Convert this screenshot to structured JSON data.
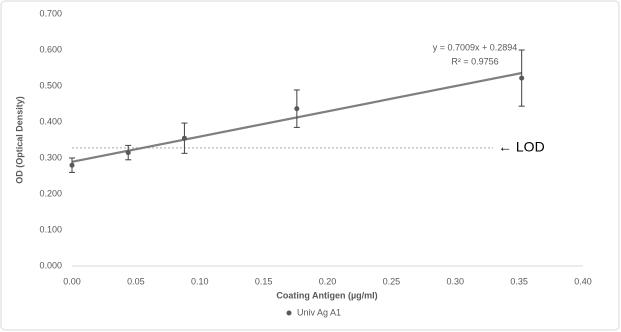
{
  "chart_data": {
    "type": "scatter",
    "x_label": "Coating Antigen (µg/ml)",
    "y_label": "OD (Optical Density)",
    "x": [
      0,
      0.044,
      0.088,
      0.176,
      0.352
    ],
    "series": [
      {
        "name": "Univ Ag A1",
        "color": "#595959",
        "values": [
          0.28,
          0.315,
          0.355,
          0.437,
          0.522
        ],
        "errors": [
          0.02,
          0.02,
          0.042,
          0.052,
          0.078
        ]
      }
    ],
    "trendline": {
      "slope": 0.7009,
      "intercept": 0.2894,
      "color": "#7f7f7f",
      "label": "y = 0.7009x + 0.2894",
      "r2_label": "R² = 0.9756"
    },
    "lod": {
      "value": 0.328,
      "label": "← LOD",
      "color": "#a6a6a6"
    },
    "xlim": [
      0,
      0.4
    ],
    "xticks": [
      {
        "value": 0,
        "label": "0.00"
      },
      {
        "value": 0.05,
        "label": "0.05"
      },
      {
        "value": 0.1,
        "label": "0.10"
      },
      {
        "value": 0.15,
        "label": "0.15"
      },
      {
        "value": 0.2,
        "label": "0.20"
      },
      {
        "value": 0.25,
        "label": "0.25"
      },
      {
        "value": 0.3,
        "label": "0.30"
      },
      {
        "value": 0.35,
        "label": "0.35"
      },
      {
        "value": 0.4,
        "label": "0.40"
      }
    ],
    "ylim": [
      0,
      0.7
    ],
    "yticks": [
      {
        "value": 0,
        "label": "0.000"
      },
      {
        "value": 0.1,
        "label": "0.100"
      },
      {
        "value": 0.2,
        "label": "0.200"
      },
      {
        "value": 0.3,
        "label": "0.300"
      },
      {
        "value": 0.4,
        "label": "0.400"
      },
      {
        "value": 0.5,
        "label": "0.500"
      },
      {
        "value": 0.6,
        "label": "0.600"
      },
      {
        "value": 0.7,
        "label": "0.700"
      }
    ],
    "grid": false
  }
}
